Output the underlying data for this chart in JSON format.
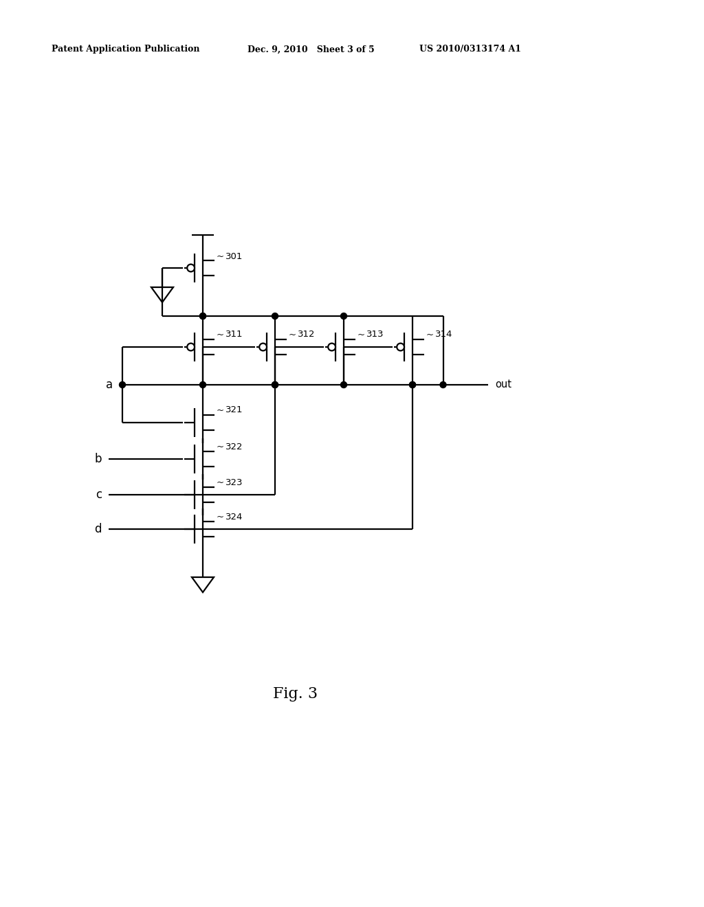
{
  "bg_color": "#ffffff",
  "header_left": "Patent Application Publication",
  "header_mid": "Dec. 9, 2010   Sheet 3 of 5",
  "header_right": "US 2010/0313174 A1",
  "fig_label": "Fig. 3",
  "lw": 1.6
}
